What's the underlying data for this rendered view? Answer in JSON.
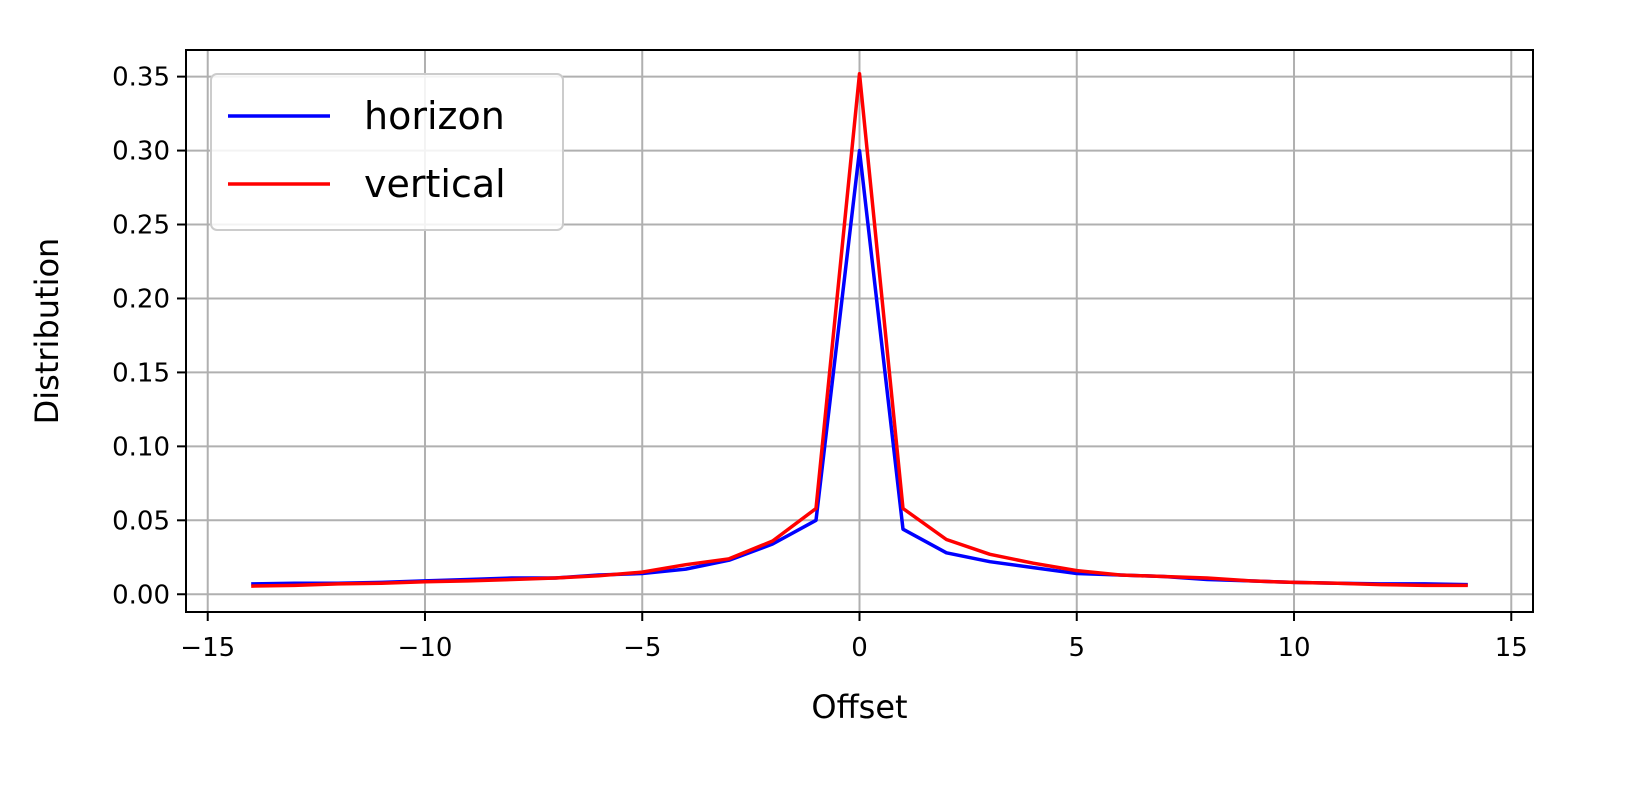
{
  "chart_data": {
    "type": "line",
    "xlabel": "Offset",
    "ylabel": "Distribution",
    "xlim": [
      -15.5,
      15.5
    ],
    "ylim": [
      -0.012,
      0.368
    ],
    "xticks": [
      -15,
      -10,
      -5,
      0,
      5,
      10,
      15
    ],
    "xtick_labels": [
      "−15",
      "−10",
      "−5",
      "0",
      "5",
      "10",
      "15"
    ],
    "yticks": [
      0.0,
      0.05,
      0.1,
      0.15,
      0.2,
      0.25,
      0.3,
      0.35
    ],
    "ytick_labels": [
      "0.00",
      "0.05",
      "0.10",
      "0.15",
      "0.20",
      "0.25",
      "0.30",
      "0.35"
    ],
    "grid": true,
    "legend_position": "top-left",
    "series": [
      {
        "name": "horizon",
        "color": "#0000ff",
        "x": [
          -14,
          -13,
          -12,
          -11,
          -10,
          -9,
          -8,
          -7,
          -6,
          -5,
          -4,
          -3,
          -2,
          -1,
          0,
          1,
          2,
          3,
          4,
          5,
          6,
          7,
          8,
          9,
          10,
          11,
          12,
          13,
          14
        ],
        "y": [
          0.007,
          0.0075,
          0.0075,
          0.008,
          0.009,
          0.01,
          0.011,
          0.011,
          0.013,
          0.014,
          0.017,
          0.023,
          0.034,
          0.05,
          0.3,
          0.044,
          0.028,
          0.022,
          0.018,
          0.014,
          0.013,
          0.012,
          0.01,
          0.009,
          0.008,
          0.0075,
          0.007,
          0.007,
          0.0065
        ]
      },
      {
        "name": "vertical",
        "color": "#ff0000",
        "x": [
          -14,
          -13,
          -12,
          -11,
          -10,
          -9,
          -8,
          -7,
          -6,
          -5,
          -4,
          -3,
          -2,
          -1,
          0,
          1,
          2,
          3,
          4,
          5,
          6,
          7,
          8,
          9,
          10,
          11,
          12,
          13,
          14
        ],
        "y": [
          0.0055,
          0.006,
          0.007,
          0.0075,
          0.0085,
          0.009,
          0.01,
          0.011,
          0.0125,
          0.015,
          0.02,
          0.024,
          0.036,
          0.058,
          0.352,
          0.058,
          0.037,
          0.027,
          0.021,
          0.016,
          0.013,
          0.012,
          0.011,
          0.009,
          0.008,
          0.0075,
          0.0065,
          0.006,
          0.006
        ]
      }
    ]
  }
}
